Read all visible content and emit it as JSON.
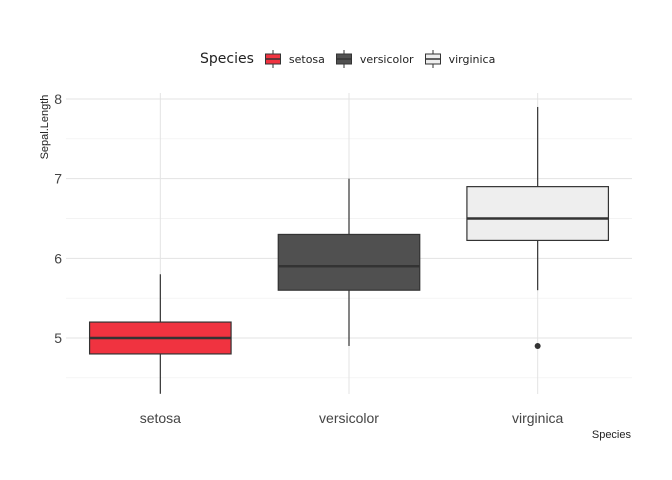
{
  "legend": {
    "title": "Species",
    "items": [
      {
        "label": "setosa",
        "fill": "#f03340",
        "stroke": "#333333"
      },
      {
        "label": "versicolor",
        "fill": "#505050",
        "stroke": "#333333"
      },
      {
        "label": "virginica",
        "fill": "#eeeeee",
        "stroke": "#333333"
      }
    ]
  },
  "chart_data": {
    "type": "boxplot",
    "xlabel": "Species",
    "ylabel": "Sepal.Length",
    "categories": [
      "setosa",
      "versicolor",
      "virginica"
    ],
    "ylim": [
      4.2,
      8.1
    ],
    "yticks": [
      5,
      6,
      7,
      8
    ],
    "grid": true,
    "legend_position": "top",
    "boxes": [
      {
        "category": "setosa",
        "min": 4.3,
        "q1": 4.8,
        "median": 5.0,
        "q3": 5.2,
        "max": 5.8,
        "outliers": [],
        "fill": "#f03340"
      },
      {
        "category": "versicolor",
        "min": 4.9,
        "q1": 5.6,
        "median": 5.9,
        "q3": 6.3,
        "max": 7.0,
        "outliers": [],
        "fill": "#505050"
      },
      {
        "category": "virginica",
        "min": 5.6,
        "q1": 6.225,
        "median": 6.5,
        "q3": 6.9,
        "max": 7.9,
        "outliers": [
          4.9
        ],
        "fill": "#eeeeee"
      }
    ]
  }
}
